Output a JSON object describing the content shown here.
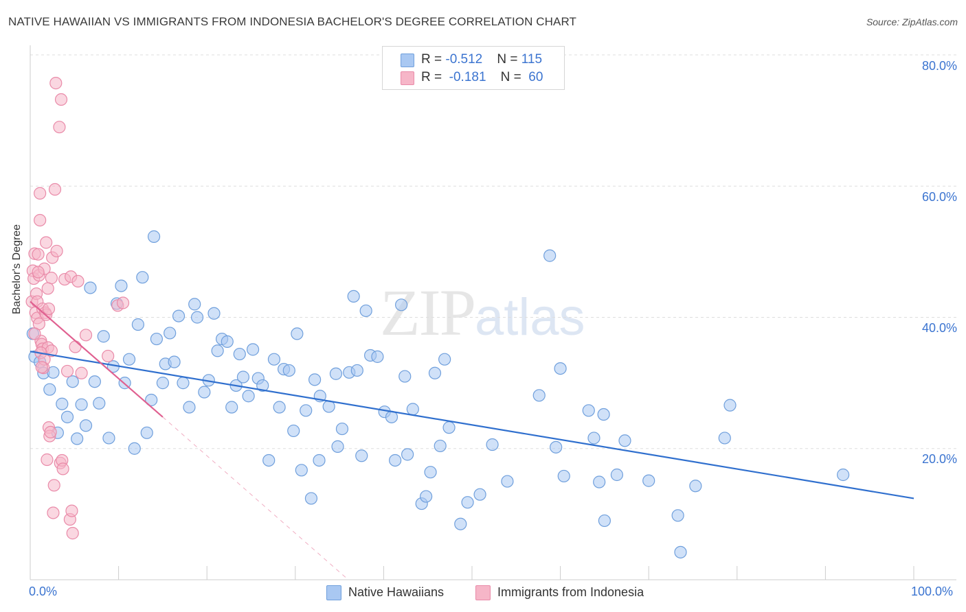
{
  "title": "NATIVE HAWAIIAN VS IMMIGRANTS FROM INDONESIA BACHELOR'S DEGREE CORRELATION CHART",
  "source": "Source: ZipAtlas.com",
  "watermark": {
    "zip": "ZIP",
    "atlas": "atlas"
  },
  "colors": {
    "blue_fill": "#a9c8f2",
    "blue_stroke": "#6f9fdc",
    "blue_line": "#2f6fce",
    "pink_fill": "#f6b6c8",
    "pink_stroke": "#e98aa8",
    "pink_line": "#e06090",
    "axis_text": "#3b74d0",
    "grid": "#dddddd"
  },
  "legend": {
    "rows": [
      {
        "r_label": "R = ",
        "r_value": "-0.512",
        "n_label": "N = ",
        "n_value": "115",
        "color": "#a9c8f2"
      },
      {
        "r_label": "R = ",
        "r_value": " -0.181",
        "n_label": "N = ",
        "n_value": " 60",
        "color": "#f6b6c8"
      }
    ]
  },
  "bottom_legend": [
    {
      "label": "Native Hawaiians",
      "color": "#a9c8f2"
    },
    {
      "label": "Immigrants from Indonesia",
      "color": "#f6b6c8"
    }
  ],
  "chart_data": {
    "type": "scatter",
    "title": "NATIVE HAWAIIAN VS IMMIGRANTS FROM INDONESIA BACHELOR'S DEGREE CORRELATION CHART",
    "xlabel": "",
    "ylabel": "Bachelor's Degree",
    "xlim": [
      0,
      100
    ],
    "ylim": [
      0,
      80
    ],
    "x_tick_labels": [
      "0.0%",
      "100.0%"
    ],
    "y_tick_labels": [
      "20.0%",
      "40.0%",
      "60.0%",
      "80.0%"
    ],
    "y_ticks": [
      20,
      40,
      60,
      80
    ],
    "grid": true,
    "legend_position": "top-center",
    "series": [
      {
        "name": "Native Hawaiians",
        "r": -0.512,
        "n": 115,
        "trend": {
          "x": [
            0,
            100
          ],
          "y": [
            34.8,
            12.4
          ]
        },
        "points": [
          [
            0.3,
            37.5
          ],
          [
            0.5,
            34
          ],
          [
            1.1,
            33.2
          ],
          [
            1.5,
            31.5
          ],
          [
            2.2,
            29
          ],
          [
            2.6,
            31.6
          ],
          [
            3.1,
            22.4
          ],
          [
            3.6,
            26.8
          ],
          [
            4.2,
            24.8
          ],
          [
            4.8,
            30.2
          ],
          [
            5.3,
            21.5
          ],
          [
            5.8,
            26.7
          ],
          [
            6.3,
            23.5
          ],
          [
            6.8,
            44.5
          ],
          [
            7.3,
            30.2
          ],
          [
            7.8,
            26.9
          ],
          [
            8.3,
            37.1
          ],
          [
            8.9,
            21.6
          ],
          [
            9.4,
            32.5
          ],
          [
            9.8,
            42.1
          ],
          [
            10.3,
            44.8
          ],
          [
            10.7,
            30
          ],
          [
            11.2,
            33.6
          ],
          [
            11.8,
            20
          ],
          [
            12.2,
            38.9
          ],
          [
            12.7,
            46.1
          ],
          [
            13.2,
            22.4
          ],
          [
            13.7,
            27.4
          ],
          [
            14.0,
            52.3
          ],
          [
            14.3,
            36.7
          ],
          [
            15.0,
            30
          ],
          [
            15.3,
            32.9
          ],
          [
            15.8,
            37.6
          ],
          [
            16.3,
            33.2
          ],
          [
            16.8,
            40.2
          ],
          [
            17.3,
            30
          ],
          [
            18.0,
            26.3
          ],
          [
            18.6,
            42
          ],
          [
            18.9,
            40
          ],
          [
            19.7,
            28.6
          ],
          [
            20.2,
            30.4
          ],
          [
            20.8,
            40.6
          ],
          [
            21.2,
            34.9
          ],
          [
            21.7,
            36.7
          ],
          [
            22.3,
            36.3
          ],
          [
            22.8,
            26.3
          ],
          [
            23.3,
            29.6
          ],
          [
            23.7,
            34.4
          ],
          [
            24.1,
            30.9
          ],
          [
            24.7,
            28
          ],
          [
            25.2,
            35.1
          ],
          [
            25.8,
            30.7
          ],
          [
            26.3,
            29.6
          ],
          [
            27.0,
            18.2
          ],
          [
            27.6,
            33.6
          ],
          [
            28.2,
            26.3
          ],
          [
            28.7,
            32.1
          ],
          [
            29.3,
            31.9
          ],
          [
            29.8,
            22.7
          ],
          [
            30.2,
            37.5
          ],
          [
            30.7,
            16.7
          ],
          [
            31.2,
            25.8
          ],
          [
            31.8,
            12.4
          ],
          [
            32.2,
            30.5
          ],
          [
            32.7,
            18.2
          ],
          [
            32.8,
            28
          ],
          [
            33.8,
            26.4
          ],
          [
            34.6,
            31.4
          ],
          [
            34.8,
            20.3
          ],
          [
            35.3,
            23
          ],
          [
            36.1,
            31.6
          ],
          [
            36.6,
            43.2
          ],
          [
            37.0,
            31.9
          ],
          [
            37.5,
            18.9
          ],
          [
            38.0,
            41
          ],
          [
            38.5,
            34.2
          ],
          [
            39.3,
            34
          ],
          [
            40.1,
            25.6
          ],
          [
            40.9,
            24.8
          ],
          [
            41.3,
            18.2
          ],
          [
            42.0,
            41.9
          ],
          [
            42.4,
            31
          ],
          [
            42.7,
            19.1
          ],
          [
            43.3,
            26
          ],
          [
            44.3,
            11.6
          ],
          [
            44.8,
            12.7
          ],
          [
            45.3,
            16.4
          ],
          [
            45.8,
            31.5
          ],
          [
            46.4,
            20.4
          ],
          [
            46.9,
            33.6
          ],
          [
            47.4,
            23.2
          ],
          [
            48.7,
            8.5
          ],
          [
            49.5,
            11.8
          ],
          [
            50.9,
            13
          ],
          [
            52.3,
            20.6
          ],
          [
            54.0,
            15
          ],
          [
            57.6,
            28.1
          ],
          [
            58.8,
            49.4
          ],
          [
            59.5,
            20.2
          ],
          [
            60.0,
            32.2
          ],
          [
            60.4,
            15.8
          ],
          [
            63.2,
            25.8
          ],
          [
            63.8,
            21.6
          ],
          [
            64.4,
            14.9
          ],
          [
            64.9,
            25.2
          ],
          [
            65.0,
            9
          ],
          [
            66.4,
            16
          ],
          [
            67.3,
            21.2
          ],
          [
            70.0,
            15.1
          ],
          [
            73.3,
            9.8
          ],
          [
            73.6,
            4.2
          ],
          [
            75.3,
            14.3
          ],
          [
            78.6,
            21.6
          ],
          [
            79.2,
            26.6
          ],
          [
            92.0,
            16
          ]
        ]
      },
      {
        "name": "Immigrants from Indonesia",
        "r": -0.181,
        "n": 60,
        "trend": {
          "x": [
            0,
            15
          ],
          "y": [
            42.4,
            24.8
          ]
        },
        "trend_dashed": {
          "x": [
            15,
            36
          ],
          "y": [
            24.8,
            0
          ]
        },
        "points": [
          [
            0.2,
            42.4
          ],
          [
            0.3,
            47.1
          ],
          [
            0.4,
            45.9
          ],
          [
            0.5,
            49.7
          ],
          [
            0.6,
            40.7
          ],
          [
            0.7,
            43.6
          ],
          [
            0.8,
            39.9
          ],
          [
            0.8,
            42.4
          ],
          [
            0.9,
            49.6
          ],
          [
            1.0,
            46.4
          ],
          [
            1.0,
            39
          ],
          [
            1.1,
            58.9
          ],
          [
            1.1,
            54.8
          ],
          [
            1.2,
            36.4
          ],
          [
            1.3,
            35.9
          ],
          [
            1.4,
            41.3
          ],
          [
            1.4,
            35.2
          ],
          [
            1.5,
            32.3
          ],
          [
            1.6,
            47.4
          ],
          [
            1.7,
            40.7
          ],
          [
            1.8,
            51.4
          ],
          [
            1.8,
            40.4
          ],
          [
            1.9,
            18.3
          ],
          [
            2.0,
            35.4
          ],
          [
            2.1,
            23.2
          ],
          [
            2.1,
            41.3
          ],
          [
            2.2,
            21.9
          ],
          [
            2.3,
            22.5
          ],
          [
            2.4,
            46
          ],
          [
            2.4,
            34.9
          ],
          [
            2.5,
            49.1
          ],
          [
            2.6,
            10.2
          ],
          [
            2.7,
            14.4
          ],
          [
            2.8,
            59.5
          ],
          [
            2.9,
            75.7
          ],
          [
            3.0,
            50.1
          ],
          [
            3.3,
            69
          ],
          [
            3.4,
            17.8
          ],
          [
            3.5,
            73.2
          ],
          [
            3.6,
            18.2
          ],
          [
            3.7,
            16.9
          ],
          [
            3.9,
            45.8
          ],
          [
            4.2,
            31.8
          ],
          [
            4.5,
            9.2
          ],
          [
            4.6,
            46.2
          ],
          [
            4.7,
            10.5
          ],
          [
            4.8,
            7.1
          ],
          [
            5.1,
            35.5
          ],
          [
            5.4,
            45.5
          ],
          [
            5.8,
            31.5
          ],
          [
            6.3,
            37.3
          ],
          [
            8.8,
            34.1
          ],
          [
            9.9,
            41.8
          ],
          [
            10.5,
            42.2
          ],
          [
            0.5,
            37.5
          ],
          [
            1.2,
            34.6
          ],
          [
            1.6,
            33.6
          ],
          [
            0.9,
            46.9
          ],
          [
            1.3,
            32.4
          ],
          [
            2.0,
            44.4
          ]
        ]
      }
    ]
  }
}
